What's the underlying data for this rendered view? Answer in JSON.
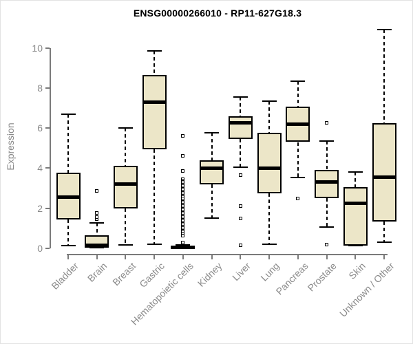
{
  "page": {
    "title": "ENSG00000266010 - RP11-627G18.3"
  },
  "chart_data": {
    "type": "boxplot",
    "title": "ENSG00000266010 - RP11-627G18.3",
    "ylabel": "Expression",
    "xlabel": "",
    "ylim": [
      0,
      10
    ],
    "yticks": [
      0,
      2,
      4,
      6,
      8,
      10
    ],
    "grid": false,
    "legend_position": "none",
    "categories": [
      "Bladder",
      "Brain",
      "Breast",
      "Gastric",
      "Hematopoietic cells",
      "Kidney",
      "Liver",
      "Lung",
      "Pancreas",
      "Prostate",
      "Skin",
      "Unknown / Other"
    ],
    "boxes": [
      {
        "category": "Bladder",
        "whisker_low": 0.15,
        "q1": 1.45,
        "median": 2.55,
        "q3": 3.78,
        "whisker_high": 6.7,
        "outliers": []
      },
      {
        "category": "Brain",
        "whisker_low": 0.02,
        "q1": 0.02,
        "median": 0.15,
        "q3": 0.65,
        "whisker_high": 1.26,
        "outliers": [
          1.45,
          1.55,
          1.78,
          2.85
        ]
      },
      {
        "category": "Breast",
        "whisker_low": 0.18,
        "q1": 2.0,
        "median": 3.2,
        "q3": 4.1,
        "whisker_high": 6.0,
        "outliers": []
      },
      {
        "category": "Gastric",
        "whisker_low": 0.2,
        "q1": 4.95,
        "median": 7.3,
        "q3": 8.65,
        "whisker_high": 9.85,
        "outliers": []
      },
      {
        "category": "Hematopoietic cells",
        "whisker_low": 0.0,
        "q1": 0.0,
        "median": 0.05,
        "q3": 0.12,
        "whisker_high": 0.16,
        "outliers": [
          5.6,
          4.6,
          3.85,
          3.45,
          3.38,
          3.31,
          3.24,
          3.17,
          3.1,
          3.03,
          2.96,
          2.89,
          2.82,
          2.75,
          2.68,
          2.61,
          2.54,
          2.47,
          2.4,
          2.33,
          2.26,
          2.19,
          2.12,
          2.05,
          1.98,
          1.91,
          1.84,
          1.77,
          1.7,
          1.63,
          1.56,
          1.49,
          1.42,
          1.35,
          1.28,
          1.21,
          1.14,
          1.07,
          1.0,
          0.93,
          0.86,
          0.8,
          0.73,
          0.62,
          0.28
        ]
      },
      {
        "category": "Kidney",
        "whisker_low": 1.5,
        "q1": 3.2,
        "median": 4.0,
        "q3": 4.4,
        "whisker_high": 5.75,
        "outliers": []
      },
      {
        "category": "Liver",
        "whisker_low": 4.05,
        "q1": 5.45,
        "median": 6.25,
        "q3": 6.6,
        "whisker_high": 7.55,
        "outliers": [
          3.65,
          2.1,
          1.5,
          0.15
        ]
      },
      {
        "category": "Lung",
        "whisker_low": 0.2,
        "q1": 2.75,
        "median": 4.0,
        "q3": 5.75,
        "whisker_high": 7.35,
        "outliers": []
      },
      {
        "category": "Pancreas",
        "whisker_low": 3.55,
        "q1": 5.3,
        "median": 6.2,
        "q3": 7.05,
        "whisker_high": 8.35,
        "outliers": [
          2.5
        ]
      },
      {
        "category": "Prostate",
        "whisker_low": 1.05,
        "q1": 2.5,
        "median": 3.3,
        "q3": 3.9,
        "whisker_high": 5.35,
        "outliers": [
          6.25,
          0.2
        ]
      },
      {
        "category": "Skin",
        "whisker_low": 0.15,
        "q1": 0.15,
        "median": 2.25,
        "q3": 3.05,
        "whisker_high": 3.8,
        "outliers": []
      },
      {
        "category": "Unknown / Other",
        "whisker_low": 0.3,
        "q1": 1.35,
        "median": 3.55,
        "q3": 6.25,
        "whisker_high": 10.9,
        "outliers": []
      }
    ],
    "colors": {
      "box_fill": "#ece6c8",
      "box_stroke": "#000000",
      "median": "#000000",
      "whisker": "#000000",
      "outlier_stroke": "#000000",
      "outlier_fill": "#ffffff",
      "axis": "#7a7a7a",
      "tick_label": "#8a8a8a",
      "title": "#000000",
      "background": "#ffffff"
    }
  }
}
